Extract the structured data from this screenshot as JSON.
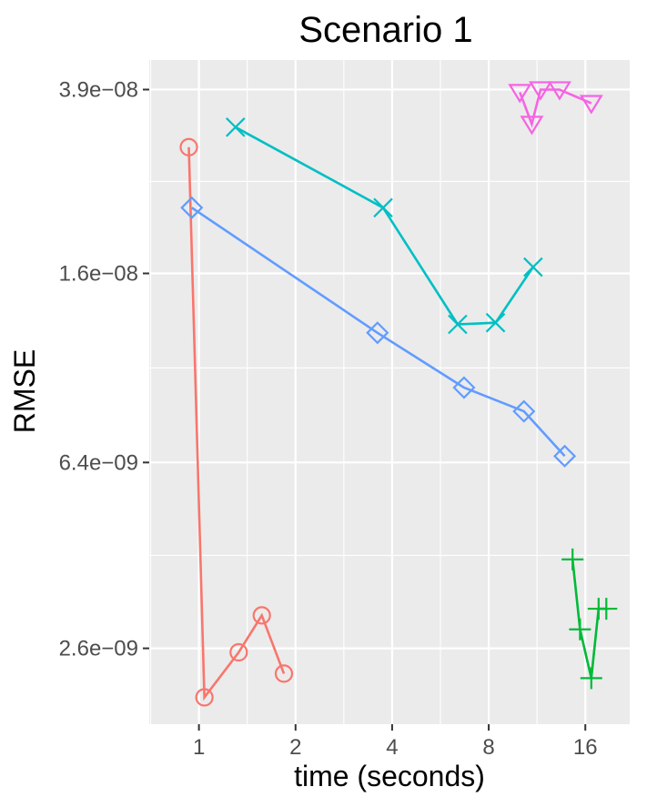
{
  "chart_data": {
    "type": "line",
    "title": "Scenario 1",
    "xlabel": "time (seconds)",
    "ylabel": "RMSE",
    "x_scale": "log2",
    "y_scale": "log",
    "x_ticks": [
      1,
      2,
      4,
      8,
      16
    ],
    "x_tick_labels": [
      "1",
      "2",
      "4",
      "8",
      "16"
    ],
    "y_ticks": [
      2.6e-09,
      6.4e-09,
      1.6e-08,
      3.9e-08
    ],
    "y_tick_labels": [
      "2.6e−09",
      "6.4e−09",
      "1.6e−08",
      "3.9e−08"
    ],
    "xlim": [
      0.7,
      22
    ],
    "ylim": [
      1.8e-09,
      4.5e-08
    ],
    "grid": true,
    "legend": "none",
    "series": [
      {
        "color": "#F8766D",
        "marker": "circle",
        "x": [
          0.93,
          1.04,
          1.33,
          1.57,
          1.84
        ],
        "y": [
          2.95e-08,
          2.05e-09,
          2.55e-09,
          3.05e-09,
          2.3e-09
        ]
      },
      {
        "color": "#00BA38",
        "marker": "plus",
        "x": [
          14.6,
          15.4,
          16.7,
          17.6,
          18.6
        ],
        "y": [
          4e-09,
          2.85e-09,
          2.25e-09,
          3.15e-09,
          3.15e-09
        ]
      },
      {
        "color": "#00BFC4",
        "marker": "cross",
        "x": [
          1.3,
          3.75,
          6.4,
          8.4,
          11.0
        ],
        "y": [
          3.25e-08,
          2.2e-08,
          1.25e-08,
          1.26e-08,
          1.65e-08
        ]
      },
      {
        "color": "#619CFF",
        "marker": "diamond",
        "x": [
          0.95,
          3.6,
          6.7,
          10.3,
          13.8
        ],
        "y": [
          2.2e-08,
          1.2e-08,
          9.2e-09,
          8.2e-09,
          6.6e-09
        ]
      },
      {
        "color": "#F564E3",
        "marker": "triangle-down",
        "x": [
          10.0,
          10.9,
          11.6,
          13.3,
          16.7
        ],
        "y": [
          3.85e-08,
          3.3e-08,
          3.9e-08,
          3.9e-08,
          3.65e-08
        ]
      }
    ]
  }
}
